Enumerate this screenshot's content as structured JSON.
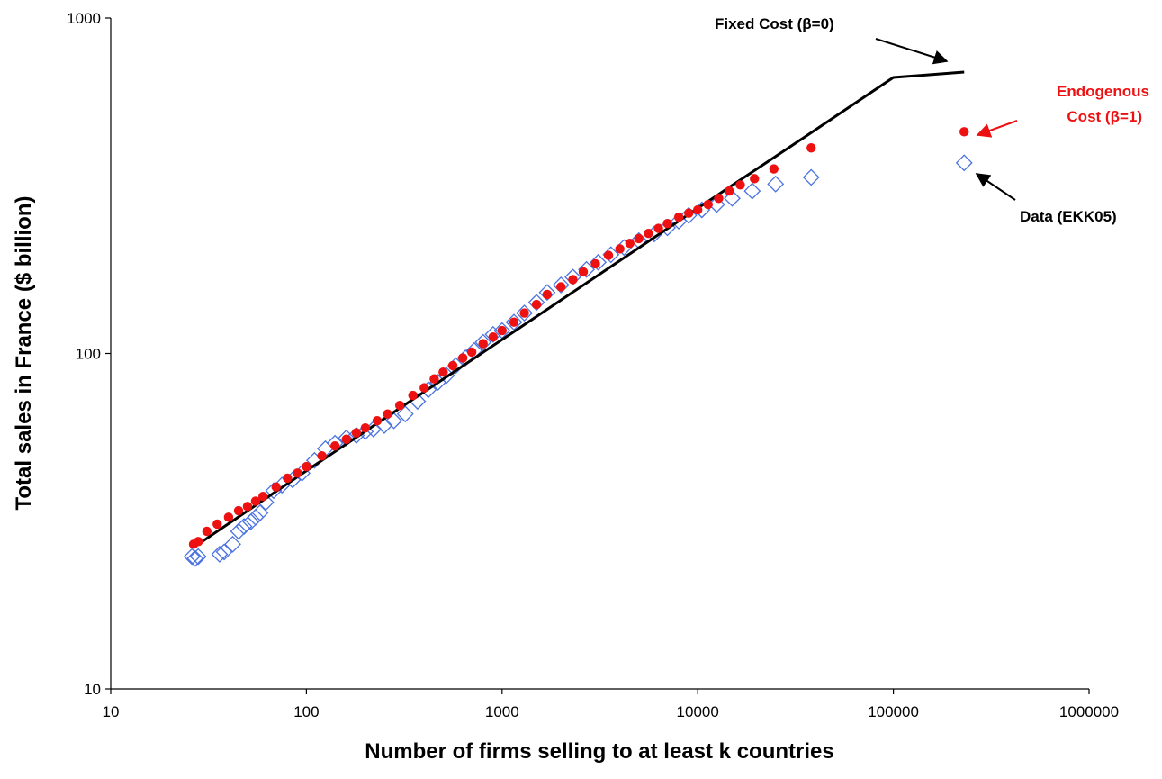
{
  "chart_data": {
    "type": "scatter",
    "xscale": "log",
    "yscale": "log",
    "xlim": [
      10,
      1000000
    ],
    "ylim": [
      10,
      1000
    ],
    "xlabel": "Number of firms selling to at least k countries",
    "ylabel": "Total sales in France ($ billion)",
    "x_ticks": [
      10,
      100,
      1000,
      10000,
      100000,
      1000000
    ],
    "y_ticks": [
      10,
      100,
      1000
    ],
    "grid": false,
    "colors": {
      "data": "#4a72e0",
      "model": "#ee1111",
      "line": "#000000"
    },
    "annotations": {
      "fixed_cost": "Fixed Cost (β=0)",
      "endogenous_cost_line1": "Endogenous",
      "endogenous_cost_line2": "Cost (β=1)",
      "data_label": "Data (EKK05)"
    },
    "series": [
      {
        "id": "fixed_cost",
        "style": "line",
        "x": [
          28,
          100,
          300,
          1000,
          3000,
          10000,
          30000,
          100000,
          230000
        ],
        "y": [
          27,
          44.7,
          68.7,
          110,
          169,
          271,
          415,
          665,
          690
        ]
      },
      {
        "id": "endogenous_cost",
        "style": "filled-circle",
        "x": [
          26.5,
          28,
          31,
          35,
          40,
          45,
          50,
          55,
          60,
          70,
          80,
          90,
          100,
          120,
          140,
          160,
          180,
          200,
          230,
          260,
          300,
          350,
          400,
          450,
          500,
          560,
          630,
          700,
          800,
          900,
          1000,
          1150,
          1300,
          1500,
          1700,
          2000,
          2300,
          2600,
          3000,
          3500,
          4000,
          4500,
          5000,
          5600,
          6300,
          7000,
          8000,
          9000,
          10000,
          11300,
          12800,
          14500,
          16500,
          19500,
          24500,
          38000,
          230000
        ],
        "y": [
          27,
          27.5,
          29.5,
          31,
          32.5,
          34,
          35,
          36.3,
          37.5,
          40,
          42.5,
          44,
          46,
          49.5,
          53,
          55.5,
          58,
          60,
          63,
          66,
          70,
          75,
          79,
          84,
          88,
          92,
          97,
          101,
          107,
          112,
          117,
          124,
          132,
          140,
          150,
          158,
          166,
          175,
          185,
          196,
          205,
          213,
          220,
          228,
          236,
          244,
          255,
          262,
          268,
          278,
          290,
          305,
          318,
          332,
          355,
          410,
          458
        ]
      },
      {
        "id": "data",
        "style": "hollow-diamond",
        "x": [
          26,
          27,
          28,
          36,
          38,
          42,
          45,
          48,
          52,
          55,
          58,
          62,
          68,
          75,
          85,
          95,
          110,
          125,
          140,
          160,
          180,
          200,
          220,
          250,
          280,
          320,
          370,
          420,
          470,
          520,
          580,
          650,
          720,
          800,
          900,
          1000,
          1150,
          1300,
          1500,
          1700,
          2000,
          2300,
          2700,
          3100,
          3600,
          4200,
          5000,
          6000,
          7000,
          8000,
          9000,
          10500,
          12500,
          15000,
          19000,
          25000,
          38000,
          230000
        ],
        "y": [
          24.8,
          24.5,
          24.8,
          25.2,
          25.6,
          27,
          29.5,
          30.5,
          31.5,
          32.5,
          33.5,
          36,
          39,
          40.5,
          42,
          44,
          48,
          52,
          54,
          56,
          57,
          58.5,
          59.5,
          61,
          63,
          66,
          72,
          78,
          82,
          86,
          92,
          97,
          102,
          108,
          114,
          117,
          124,
          132,
          142,
          152,
          160,
          169,
          178,
          187,
          197,
          207,
          217,
          227,
          237,
          248,
          258,
          268,
          278,
          290,
          305,
          320,
          335,
          370
        ]
      }
    ]
  }
}
